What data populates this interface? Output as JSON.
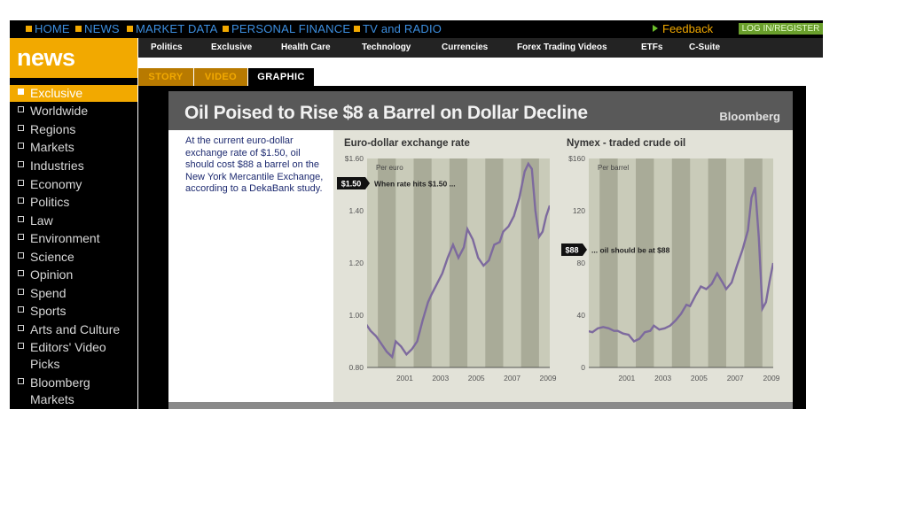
{
  "topnav": {
    "items": [
      "HOME",
      "NEWS",
      "MARKET DATA",
      "PERSONAL FINANCE",
      "TV and RADIO"
    ],
    "feedback": "Feedback",
    "login": "LOG IN/REGISTER"
  },
  "logo": "news",
  "subnav": [
    "Politics",
    "Exclusive",
    "Health Care",
    "Technology",
    "Currencies",
    "Forex Trading Videos",
    "ETFs",
    "C-Suite"
  ],
  "tabs": [
    "STORY",
    "VIDEO",
    "GRAPHIC"
  ],
  "active_tab": "GRAPHIC",
  "sidebar": {
    "items": [
      "Exclusive",
      "Worldwide",
      "Regions",
      "Markets",
      "Industries",
      "Economy",
      "Politics",
      "Law",
      "Environment",
      "Science",
      "Opinion",
      "Spend",
      "Sports",
      "Arts and Culture",
      "Editors' Video Picks",
      "Bloomberg Markets"
    ],
    "active": "Exclusive"
  },
  "graphic": {
    "title": "Oil Poised to Rise $8 a Barrel on Dollar Decline",
    "source": "Bloomberg",
    "description": "At the current euro-dollar exchange rate of $1.50, oil should cost $88 a barrel on the New York Mercantile Exchange, according to a DekaBank study."
  },
  "colors": {
    "accent": "#f2a900",
    "link": "#3d8fe0",
    "line": "#7d6a9e",
    "band": "#a9ab98",
    "plot_bg": "#c9cbb9"
  },
  "chart_data": [
    {
      "type": "line",
      "title": "Euro-dollar exchange rate",
      "unit_label": "Per euro",
      "callout_value": "$1.50",
      "callout_text": "When rate hits $1.50 ...",
      "x_ticks": [
        "2001",
        "2003",
        "2005",
        "2007",
        "2009"
      ],
      "y_ticks": [
        "$1.60",
        "1.40",
        "1.20",
        "1.00",
        "0.80"
      ],
      "xlim": [
        1999.4,
        2009.6
      ],
      "ylim": [
        0.8,
        1.6
      ],
      "series": [
        {
          "x": [
            1999.0,
            1999.3,
            1999.6,
            1999.9,
            2000.2,
            2000.5,
            2000.8,
            2001.0,
            2001.3,
            2001.6,
            2001.9,
            2002.2,
            2002.5,
            2002.8,
            2003.0,
            2003.3,
            2003.6,
            2003.9,
            2004.2,
            2004.5,
            2004.8,
            2005.0,
            2005.3,
            2005.6,
            2005.9,
            2006.2,
            2006.5,
            2006.8,
            2007.0,
            2007.3,
            2007.6,
            2007.9,
            2008.2,
            2008.4,
            2008.6,
            2008.8,
            2009.0,
            2009.2,
            2009.4,
            2009.6
          ],
          "y": [
            1.01,
            0.97,
            0.94,
            0.92,
            0.89,
            0.86,
            0.84,
            0.9,
            0.88,
            0.85,
            0.87,
            0.9,
            0.98,
            1.05,
            1.08,
            1.12,
            1.16,
            1.22,
            1.27,
            1.22,
            1.26,
            1.33,
            1.29,
            1.22,
            1.19,
            1.21,
            1.27,
            1.28,
            1.32,
            1.34,
            1.38,
            1.45,
            1.55,
            1.58,
            1.56,
            1.4,
            1.3,
            1.32,
            1.38,
            1.42
          ]
        }
      ]
    },
    {
      "type": "line",
      "title": "Nymex - traded crude oil",
      "unit_label": "Per barrel",
      "callout_value": "$88",
      "callout_text": "... oil should be at $88",
      "x_ticks": [
        "2001",
        "2003",
        "2005",
        "2007",
        "2009"
      ],
      "y_ticks": [
        "$160",
        "120",
        "80",
        "40",
        "0"
      ],
      "xlim": [
        1999.4,
        2009.6
      ],
      "ylim": [
        0,
        160
      ],
      "series": [
        {
          "x": [
            1999.0,
            1999.3,
            1999.6,
            1999.9,
            2000.2,
            2000.5,
            2000.8,
            2001.0,
            2001.3,
            2001.6,
            2001.9,
            2002.2,
            2002.5,
            2002.8,
            2003.0,
            2003.3,
            2003.6,
            2003.9,
            2004.2,
            2004.5,
            2004.8,
            2005.0,
            2005.3,
            2005.6,
            2005.9,
            2006.2,
            2006.5,
            2006.8,
            2007.0,
            2007.3,
            2007.6,
            2007.9,
            2008.2,
            2008.4,
            2008.6,
            2008.8,
            2009.0,
            2009.2,
            2009.4,
            2009.6
          ],
          "y": [
            26,
            28,
            27,
            30,
            31,
            30,
            28,
            28,
            26,
            25,
            20,
            22,
            27,
            28,
            32,
            29,
            30,
            32,
            36,
            41,
            48,
            47,
            55,
            62,
            60,
            64,
            72,
            65,
            60,
            65,
            78,
            90,
            105,
            130,
            138,
            100,
            45,
            50,
            66,
            80
          ]
        }
      ]
    }
  ]
}
